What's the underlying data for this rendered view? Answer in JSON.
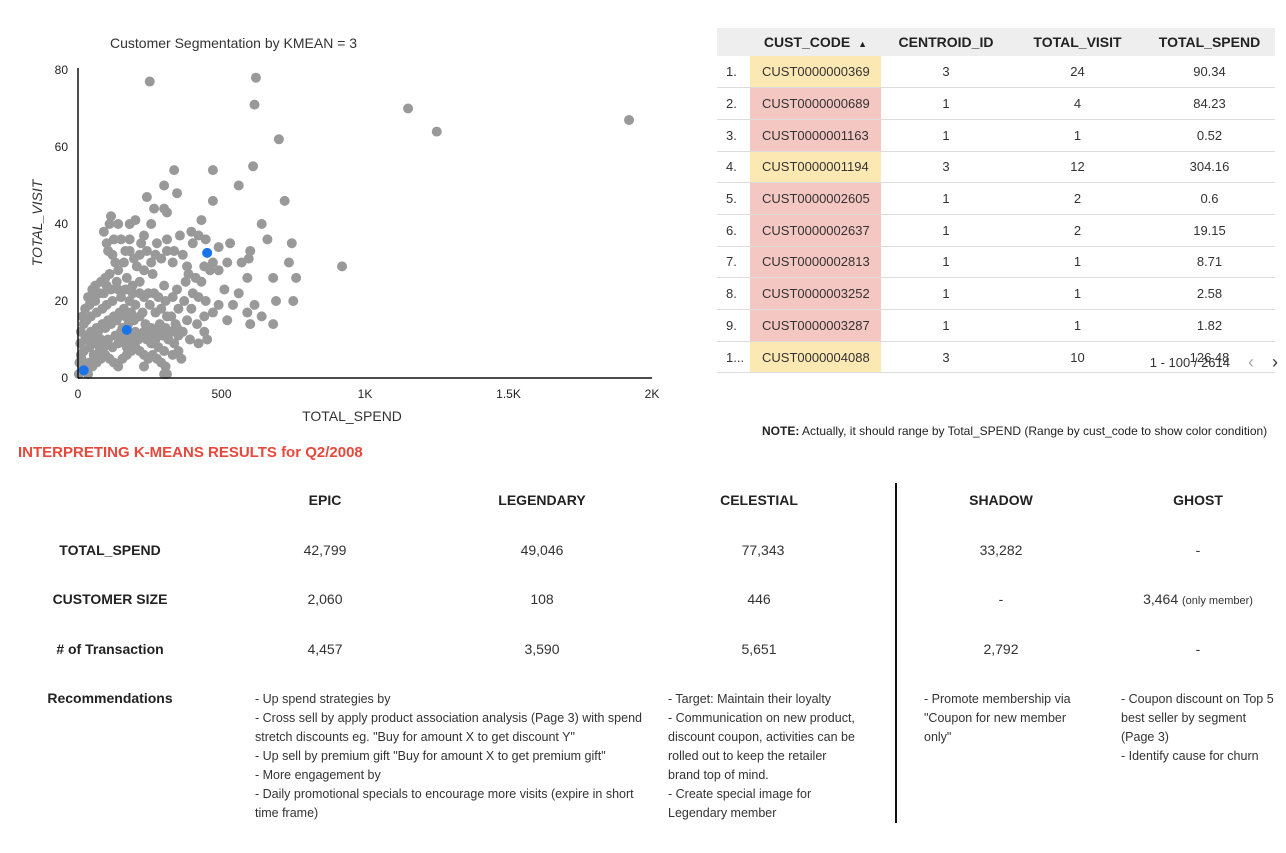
{
  "chart_data": {
    "type": "scatter",
    "title": "Customer Segmentation by KMEAN = 3",
    "xlabel": "TOTAL_SPEND",
    "ylabel": "TOTAL_VISIT",
    "xlim": [
      0,
      2000
    ],
    "ylim": [
      0,
      80
    ],
    "xticks": [
      {
        "value": 0,
        "label": "0"
      },
      {
        "value": 500,
        "label": "500"
      },
      {
        "value": 1000,
        "label": "1K"
      },
      {
        "value": 1500,
        "label": "1.5K"
      },
      {
        "value": 2000,
        "label": "2K"
      }
    ],
    "yticks": [
      {
        "value": 0,
        "label": "0"
      },
      {
        "value": 20,
        "label": "20"
      },
      {
        "value": 40,
        "label": "40"
      },
      {
        "value": 60,
        "label": "60"
      },
      {
        "value": 80,
        "label": "80"
      }
    ],
    "grid": false,
    "legend": "none",
    "point_color": "#999999",
    "centroid_color": "#1a73e8",
    "series": [
      {
        "points": [
          [
            250,
            77
          ],
          [
            620,
            78
          ],
          [
            615,
            71
          ],
          [
            1150,
            70
          ],
          [
            1250,
            64
          ],
          [
            1920,
            67
          ],
          [
            700,
            62
          ],
          [
            610,
            55
          ],
          [
            300,
            50
          ],
          [
            335,
            54
          ],
          [
            470,
            54
          ],
          [
            560,
            50
          ],
          [
            345,
            48
          ],
          [
            240,
            47
          ],
          [
            720,
            46
          ],
          [
            470,
            46
          ],
          [
            300,
            44
          ],
          [
            265,
            44
          ],
          [
            200,
            41
          ],
          [
            115,
            42
          ],
          [
            110,
            40
          ],
          [
            140,
            40
          ],
          [
            180,
            40
          ],
          [
            310,
            43
          ],
          [
            255,
            40
          ],
          [
            430,
            41
          ],
          [
            395,
            38
          ],
          [
            420,
            37
          ],
          [
            400,
            35
          ],
          [
            445,
            36
          ],
          [
            355,
            37
          ],
          [
            230,
            37
          ],
          [
            220,
            35
          ],
          [
            180,
            36
          ],
          [
            150,
            36
          ],
          [
            125,
            36
          ],
          [
            90,
            38
          ],
          [
            100,
            35
          ],
          [
            105,
            33
          ],
          [
            180,
            33
          ],
          [
            215,
            32
          ],
          [
            270,
            32
          ],
          [
            310,
            33
          ],
          [
            490,
            34
          ],
          [
            530,
            35
          ],
          [
            640,
            40
          ],
          [
            660,
            36
          ],
          [
            600,
            33
          ],
          [
            595,
            31
          ],
          [
            570,
            30
          ],
          [
            520,
            30
          ],
          [
            490,
            28
          ],
          [
            460,
            28
          ],
          [
            440,
            29
          ],
          [
            470,
            30
          ],
          [
            380,
            29
          ],
          [
            330,
            30
          ],
          [
            290,
            31
          ],
          [
            255,
            30
          ],
          [
            230,
            28
          ],
          [
            205,
            29
          ],
          [
            160,
            30
          ],
          [
            140,
            28
          ],
          [
            110,
            27
          ],
          [
            95,
            26
          ],
          [
            80,
            25
          ],
          [
            60,
            24
          ],
          [
            90,
            22
          ],
          [
            55,
            21
          ],
          [
            140,
            23
          ],
          [
            170,
            26
          ],
          [
            190,
            24
          ],
          [
            215,
            25
          ],
          [
            260,
            27
          ],
          [
            265,
            22
          ],
          [
            300,
            24
          ],
          [
            345,
            23
          ],
          [
            375,
            25
          ],
          [
            400,
            22
          ],
          [
            420,
            21
          ],
          [
            445,
            20
          ],
          [
            490,
            19
          ],
          [
            510,
            23
          ],
          [
            560,
            22
          ],
          [
            590,
            26
          ],
          [
            615,
            19
          ],
          [
            680,
            26
          ],
          [
            690,
            20
          ],
          [
            745,
            35
          ],
          [
            735,
            30
          ],
          [
            760,
            26
          ],
          [
            750,
            20
          ],
          [
            920,
            29
          ],
          [
            590,
            17
          ],
          [
            640,
            16
          ],
          [
            600,
            14
          ],
          [
            680,
            14
          ],
          [
            520,
            15
          ],
          [
            540,
            19
          ],
          [
            470,
            17
          ],
          [
            440,
            16
          ],
          [
            395,
            18
          ],
          [
            380,
            15
          ],
          [
            415,
            14
          ],
          [
            440,
            12
          ],
          [
            450,
            10
          ],
          [
            420,
            9
          ],
          [
            390,
            10
          ],
          [
            350,
            11
          ],
          [
            340,
            14
          ],
          [
            310,
            16
          ],
          [
            290,
            18
          ],
          [
            270,
            17
          ],
          [
            250,
            19
          ],
          [
            230,
            21
          ],
          [
            200,
            19
          ],
          [
            180,
            20
          ],
          [
            160,
            18
          ],
          [
            150,
            21
          ],
          [
            120,
            20
          ],
          [
            100,
            19
          ],
          [
            85,
            18
          ],
          [
            65,
            17
          ],
          [
            45,
            16
          ],
          [
            30,
            15
          ],
          [
            20,
            14
          ],
          [
            10,
            12
          ],
          [
            30,
            10
          ],
          [
            50,
            11
          ],
          [
            70,
            12
          ],
          [
            95,
            13
          ],
          [
            115,
            14
          ],
          [
            135,
            15
          ],
          [
            155,
            13
          ],
          [
            175,
            14
          ],
          [
            195,
            15
          ],
          [
            215,
            16
          ],
          [
            235,
            14
          ],
          [
            255,
            13
          ],
          [
            275,
            12
          ],
          [
            295,
            11
          ],
          [
            315,
            10
          ],
          [
            335,
            9
          ],
          [
            350,
            7
          ],
          [
            360,
            5
          ],
          [
            330,
            6
          ],
          [
            300,
            7
          ],
          [
            280,
            8
          ],
          [
            260,
            9
          ],
          [
            240,
            10
          ],
          [
            220,
            11
          ],
          [
            200,
            12
          ],
          [
            180,
            11
          ],
          [
            160,
            10
          ],
          [
            140,
            9
          ],
          [
            120,
            8
          ],
          [
            100,
            9
          ],
          [
            80,
            10
          ],
          [
            60,
            9
          ],
          [
            40,
            8
          ],
          [
            20,
            7
          ],
          [
            10,
            6
          ],
          [
            5,
            4
          ],
          [
            15,
            3
          ],
          [
            25,
            2
          ],
          [
            35,
            1
          ],
          [
            50,
            3
          ],
          [
            65,
            4
          ],
          [
            80,
            5
          ],
          [
            95,
            6
          ],
          [
            110,
            5
          ],
          [
            125,
            4
          ],
          [
            140,
            3
          ],
          [
            155,
            5
          ],
          [
            170,
            6
          ],
          [
            185,
            7
          ],
          [
            200,
            8
          ],
          [
            215,
            7
          ],
          [
            230,
            6
          ],
          [
            245,
            5
          ],
          [
            260,
            6
          ],
          [
            275,
            5
          ],
          [
            290,
            4
          ],
          [
            305,
            3
          ],
          [
            230,
            3
          ],
          [
            300,
            1
          ],
          [
            310,
            1
          ],
          [
            255,
            9
          ],
          [
            225,
            17
          ],
          [
            185,
            17
          ],
          [
            165,
            16
          ],
          [
            145,
            17
          ],
          [
            125,
            16
          ],
          [
            105,
            15
          ],
          [
            85,
            14
          ],
          [
            65,
            13
          ],
          [
            45,
            12
          ],
          [
            25,
            11
          ],
          [
            8,
            9
          ],
          [
            12,
            5
          ],
          [
            18,
            2
          ],
          [
            3,
            1
          ],
          [
            40,
            4
          ],
          [
            55,
            6
          ],
          [
            75,
            7
          ],
          [
            90,
            8
          ],
          [
            105,
            10
          ],
          [
            130,
            11
          ],
          [
            150,
            12
          ],
          [
            170,
            8
          ],
          [
            190,
            9
          ],
          [
            210,
            10
          ],
          [
            230,
            12
          ],
          [
            250,
            11
          ],
          [
            270,
            10
          ],
          [
            285,
            14
          ],
          [
            305,
            13
          ],
          [
            325,
            12
          ],
          [
            345,
            13
          ],
          [
            365,
            12
          ],
          [
            325,
            16
          ],
          [
            350,
            18
          ],
          [
            370,
            20
          ],
          [
            330,
            21
          ],
          [
            305,
            20
          ],
          [
            280,
            21
          ],
          [
            245,
            22
          ],
          [
            215,
            22
          ],
          [
            190,
            22
          ],
          [
            165,
            23
          ],
          [
            135,
            25
          ],
          [
            115,
            23
          ],
          [
            100,
            24
          ],
          [
            75,
            22
          ],
          [
            60,
            20
          ],
          [
            40,
            19
          ],
          [
            25,
            18
          ],
          [
            15,
            16
          ],
          [
            35,
            21
          ],
          [
            50,
            23
          ],
          [
            130,
            30
          ],
          [
            120,
            32
          ],
          [
            165,
            33
          ],
          [
            195,
            31
          ],
          [
            240,
            33
          ],
          [
            275,
            35
          ],
          [
            310,
            36
          ],
          [
            335,
            33
          ],
          [
            365,
            32
          ],
          [
            385,
            27
          ],
          [
            410,
            26
          ],
          [
            430,
            25
          ]
        ]
      },
      {
        "name": "centroids",
        "points": [
          [
            20,
            2
          ],
          [
            170,
            12.5
          ],
          [
            450,
            32.5
          ]
        ]
      }
    ]
  },
  "table": {
    "headers": {
      "code": "CUST_CODE",
      "sort_indicator": "▲",
      "centroid": "CENTROID_ID",
      "visit": "TOTAL_VISIT",
      "spend": "TOTAL_SPEND"
    },
    "rows": [
      {
        "idx": "1.",
        "code": "CUST0000000369",
        "centroid": "3",
        "visit": "24",
        "spend": "90.34"
      },
      {
        "idx": "2.",
        "code": "CUST0000000689",
        "centroid": "1",
        "visit": "4",
        "spend": "84.23"
      },
      {
        "idx": "3.",
        "code": "CUST0000001163",
        "centroid": "1",
        "visit": "1",
        "spend": "0.52"
      },
      {
        "idx": "4.",
        "code": "CUST0000001194",
        "centroid": "3",
        "visit": "12",
        "spend": "304.16"
      },
      {
        "idx": "5.",
        "code": "CUST0000002605",
        "centroid": "1",
        "visit": "2",
        "spend": "0.6"
      },
      {
        "idx": "6.",
        "code": "CUST0000002637",
        "centroid": "1",
        "visit": "2",
        "spend": "19.15"
      },
      {
        "idx": "7.",
        "code": "CUST0000002813",
        "centroid": "1",
        "visit": "1",
        "spend": "8.71"
      },
      {
        "idx": "8.",
        "code": "CUST0000003252",
        "centroid": "1",
        "visit": "1",
        "spend": "2.58"
      },
      {
        "idx": "9.",
        "code": "CUST0000003287",
        "centroid": "1",
        "visit": "1",
        "spend": "1.82"
      },
      {
        "idx": "1...",
        "code": "CUST0000004088",
        "centroid": "3",
        "visit": "10",
        "spend": "126.48"
      }
    ],
    "cluster_colors": {
      "1": "#f4c7c3",
      "3": "#fce8b2"
    },
    "pagination": "1 - 100 / 2614",
    "prev_icon": "‹",
    "next_icon": "›"
  },
  "note": {
    "label": "NOTE:",
    "text": "Actually, it should range by Total_SPEND (Range by cust_code to show color condition)"
  },
  "interpretation": {
    "title": "INTERPRETING K-MEANS RESULTS for Q2/2008",
    "segments": [
      "EPIC",
      "LEGENDARY",
      "CELESTIAL",
      "SHADOW",
      "GHOST"
    ],
    "rows": {
      "spend": {
        "label": "TOTAL_SPEND",
        "values": [
          "42,799",
          "49,046",
          "77,343",
          "33,282",
          "-"
        ]
      },
      "size": {
        "label": "CUSTOMER SIZE",
        "values": [
          "2,060",
          "108",
          "446",
          "-",
          "3,464"
        ],
        "ghost_suffix": "(only member)"
      },
      "transactions": {
        "label": "# of Transaction",
        "values": [
          "4,457",
          "3,590",
          "5,651",
          "2,792",
          "-"
        ]
      }
    },
    "recommendations": {
      "label": "Recommendations",
      "epic_legendary": "- Up spend strategies by\n   - Cross sell by apply product association analysis (Page 3) with spend stretch discounts eg. \"Buy for amount X to get discount Y\"\n   - Up sell by premium gift  \"Buy for amount X to get premium gift\"\n- More engagement by\n   - Daily promotional specials to encourage more visits (expire in short time frame)",
      "celestial": "- Target: Maintain their loyalty\n- Communication on new product, discount coupon, activities can be rolled out to keep the retailer brand top of mind.\n- Create special image for Legendary member",
      "shadow": "- Promote membership via \"Coupon for new member only\"",
      "ghost": "- Coupon discount on Top 5 best seller by segment (Page 3)\n- Identify cause for churn"
    }
  }
}
